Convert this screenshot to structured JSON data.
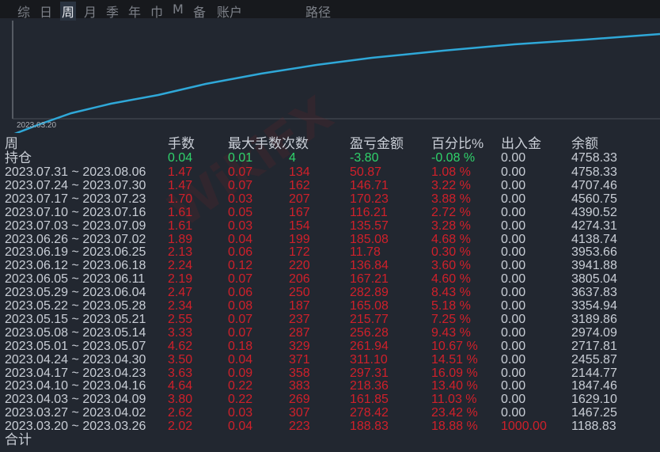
{
  "tabs": [
    {
      "label": "综",
      "active": false
    },
    {
      "label": "日",
      "active": false
    },
    {
      "label": "周",
      "active": true
    },
    {
      "label": "月",
      "active": false
    },
    {
      "label": "季",
      "active": false
    },
    {
      "label": "年",
      "active": false
    },
    {
      "label": "巾",
      "active": false
    },
    {
      "label": "M",
      "active": false
    },
    {
      "label": "备",
      "active": false
    },
    {
      "label": "账户",
      "active": false
    },
    {
      "label": "路径",
      "active": false
    }
  ],
  "chart": {
    "start_label": "2023.03.20",
    "line_color": "#2fa8d8"
  },
  "watermark": "WikiFX",
  "table": {
    "headers": [
      "周",
      "手数",
      "最大手数",
      "次数",
      "盈亏金额",
      "百分比%",
      "出入金",
      "余额"
    ],
    "open_position": {
      "label": "持仓",
      "lots": "0.04",
      "max_lots": "0.01",
      "count": "4",
      "pnl": "-3.80",
      "pct": "-0.08 %",
      "deposit": "0.00",
      "balance": "4758.33"
    },
    "rows": [
      {
        "week": "2023.07.31 ~ 2023.08.06",
        "lots": "1.47",
        "max_lots": "0.07",
        "count": "134",
        "pnl": "50.87",
        "pct": "1.08 %",
        "deposit": "0.00",
        "balance": "4758.33"
      },
      {
        "week": "2023.07.24 ~ 2023.07.30",
        "lots": "1.47",
        "max_lots": "0.07",
        "count": "162",
        "pnl": "146.71",
        "pct": "3.22 %",
        "deposit": "0.00",
        "balance": "4707.46"
      },
      {
        "week": "2023.07.17 ~ 2023.07.23",
        "lots": "1.70",
        "max_lots": "0.03",
        "count": "207",
        "pnl": "170.23",
        "pct": "3.88 %",
        "deposit": "0.00",
        "balance": "4560.75"
      },
      {
        "week": "2023.07.10 ~ 2023.07.16",
        "lots": "1.61",
        "max_lots": "0.05",
        "count": "167",
        "pnl": "116.21",
        "pct": "2.72 %",
        "deposit": "0.00",
        "balance": "4390.52"
      },
      {
        "week": "2023.07.03 ~ 2023.07.09",
        "lots": "1.61",
        "max_lots": "0.03",
        "count": "154",
        "pnl": "135.57",
        "pct": "3.28 %",
        "deposit": "0.00",
        "balance": "4274.31"
      },
      {
        "week": "2023.06.26 ~ 2023.07.02",
        "lots": "1.89",
        "max_lots": "0.04",
        "count": "199",
        "pnl": "185.08",
        "pct": "4.68 %",
        "deposit": "0.00",
        "balance": "4138.74"
      },
      {
        "week": "2023.06.19 ~ 2023.06.25",
        "lots": "2.13",
        "max_lots": "0.06",
        "count": "172",
        "pnl": "11.78",
        "pct": "0.30 %",
        "deposit": "0.00",
        "balance": "3953.66"
      },
      {
        "week": "2023.06.12 ~ 2023.06.18",
        "lots": "2.24",
        "max_lots": "0.12",
        "count": "220",
        "pnl": "136.84",
        "pct": "3.60 %",
        "deposit": "0.00",
        "balance": "3941.88"
      },
      {
        "week": "2023.06.05 ~ 2023.06.11",
        "lots": "2.19",
        "max_lots": "0.07",
        "count": "206",
        "pnl": "167.21",
        "pct": "4.60 %",
        "deposit": "0.00",
        "balance": "3805.04"
      },
      {
        "week": "2023.05.29 ~ 2023.06.04",
        "lots": "2.47",
        "max_lots": "0.06",
        "count": "250",
        "pnl": "282.89",
        "pct": "8.43 %",
        "deposit": "0.00",
        "balance": "3637.83"
      },
      {
        "week": "2023.05.22 ~ 2023.05.28",
        "lots": "2.34",
        "max_lots": "0.08",
        "count": "187",
        "pnl": "165.08",
        "pct": "5.18 %",
        "deposit": "0.00",
        "balance": "3354.94"
      },
      {
        "week": "2023.05.15 ~ 2023.05.21",
        "lots": "2.55",
        "max_lots": "0.07",
        "count": "237",
        "pnl": "215.77",
        "pct": "7.25 %",
        "deposit": "0.00",
        "balance": "3189.86"
      },
      {
        "week": "2023.05.08 ~ 2023.05.14",
        "lots": "3.33",
        "max_lots": "0.07",
        "count": "287",
        "pnl": "256.28",
        "pct": "9.43 %",
        "deposit": "0.00",
        "balance": "2974.09"
      },
      {
        "week": "2023.05.01 ~ 2023.05.07",
        "lots": "4.62",
        "max_lots": "0.18",
        "count": "329",
        "pnl": "261.94",
        "pct": "10.67 %",
        "deposit": "0.00",
        "balance": "2717.81"
      },
      {
        "week": "2023.04.24 ~ 2023.04.30",
        "lots": "3.50",
        "max_lots": "0.04",
        "count": "371",
        "pnl": "311.10",
        "pct": "14.51 %",
        "deposit": "0.00",
        "balance": "2455.87"
      },
      {
        "week": "2023.04.17 ~ 2023.04.23",
        "lots": "3.63",
        "max_lots": "0.09",
        "count": "358",
        "pnl": "297.31",
        "pct": "16.09 %",
        "deposit": "0.00",
        "balance": "2144.77"
      },
      {
        "week": "2023.04.10 ~ 2023.04.16",
        "lots": "4.64",
        "max_lots": "0.22",
        "count": "383",
        "pnl": "218.36",
        "pct": "13.40 %",
        "deposit": "0.00",
        "balance": "1847.46"
      },
      {
        "week": "2023.04.03 ~ 2023.04.09",
        "lots": "3.80",
        "max_lots": "0.22",
        "count": "269",
        "pnl": "161.85",
        "pct": "11.03 %",
        "deposit": "0.00",
        "balance": "1629.10"
      },
      {
        "week": "2023.03.27 ~ 2023.04.02",
        "lots": "2.62",
        "max_lots": "0.03",
        "count": "307",
        "pnl": "278.42",
        "pct": "23.42 %",
        "deposit": "0.00",
        "balance": "1467.25"
      },
      {
        "week": "2023.03.20 ~ 2023.03.26",
        "lots": "2.02",
        "max_lots": "0.04",
        "count": "223",
        "pnl": "188.83",
        "pct": "18.88 %",
        "deposit": "1000.00",
        "balance": "1188.83"
      }
    ],
    "total_label": "合计"
  },
  "colors": {
    "positive": "#d0202a",
    "open": "#2fd36b",
    "text": "#c9ced6",
    "background": "#222730"
  }
}
